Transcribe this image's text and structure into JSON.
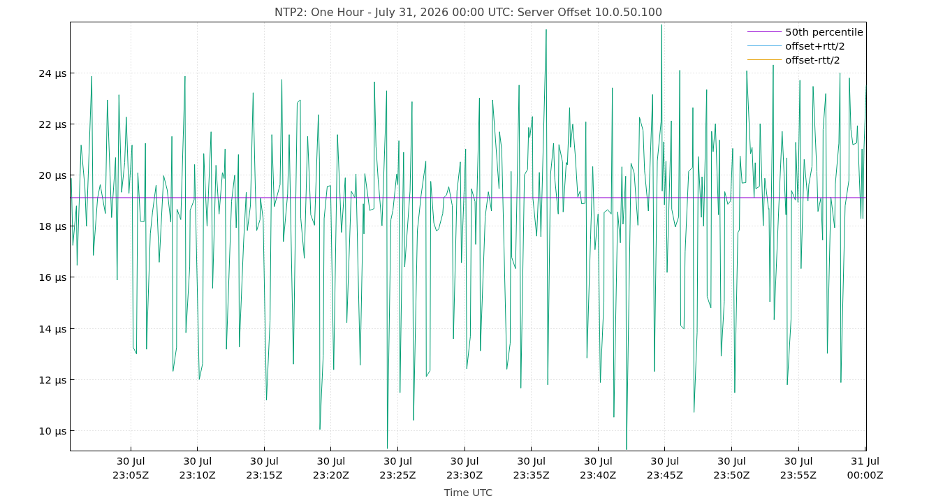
{
  "chart_data": {
    "type": "line",
    "title": "NTP2: One Hour - July 31, 2026 00:00 UTC: Server Offset 10.0.50.100",
    "xlabel": "Time UTC",
    "xlim": [
      "2026-07-30T23:00:28",
      "2026-07-31T00:00:06"
    ],
    "xticks": [
      {
        "value": "2026-07-30T23:05",
        "label": "30 Jul\n23:05Z"
      },
      {
        "value": "2026-07-30T23:10",
        "label": "30 Jul\n23:10Z"
      },
      {
        "value": "2026-07-30T23:15",
        "label": "30 Jul\n23:15Z"
      },
      {
        "value": "2026-07-30T23:20",
        "label": "30 Jul\n23:20Z"
      },
      {
        "value": "2026-07-30T23:25",
        "label": "30 Jul\n23:25Z"
      },
      {
        "value": "2026-07-30T23:30",
        "label": "30 Jul\n23:30Z"
      },
      {
        "value": "2026-07-30T23:35",
        "label": "30 Jul\n23:35Z"
      },
      {
        "value": "2026-07-30T23:40",
        "label": "30 Jul\n23:40Z"
      },
      {
        "value": "2026-07-30T23:45",
        "label": "30 Jul\n23:45Z"
      },
      {
        "value": "2026-07-30T23:50",
        "label": "30 Jul\n23:50Z"
      },
      {
        "value": "2026-07-30T23:55",
        "label": "30 Jul\n23:55Z"
      },
      {
        "value": "2026-07-31T00:00",
        "label": "31 Jul\n00:00Z"
      }
    ],
    "ylim": [
      9.2,
      26
    ],
    "yticks": [
      {
        "value": 10,
        "label": "10 µs"
      },
      {
        "value": 12,
        "label": "12 µs"
      },
      {
        "value": 14,
        "label": "14 µs"
      },
      {
        "value": 16,
        "label": "16 µs"
      },
      {
        "value": 18,
        "label": "18 µs"
      },
      {
        "value": 20,
        "label": "20 µs"
      },
      {
        "value": 22,
        "label": "22 µs"
      },
      {
        "value": 24,
        "label": "24 µs"
      }
    ],
    "grid": true,
    "legend": "top right",
    "line_style": "solid",
    "series": [
      {
        "name": "50th percentile",
        "color": "#9400d3",
        "x": [
          "2026-07-30T23:00:28",
          "2026-07-31T00:00:06"
        ],
        "values": [
          19.12,
          19.12
        ]
      },
      {
        "color": "#009e73",
        "x": [
          "2026-07-30T23:00:33",
          "2026-07-30T23:00:40",
          "2026-07-30T23:00:56",
          "2026-07-30T23:00:59",
          "2026-07-30T23:01:17",
          "2026-07-30T23:01:34",
          "2026-07-30T23:01:41",
          "2026-07-30T23:02:05",
          "2026-07-30T23:02:12",
          "2026-07-30T23:02:31",
          "2026-07-30T23:02:43",
          "2026-07-30T23:03:06",
          "2026-07-30T23:03:15",
          "2026-07-30T23:03:34",
          "2026-07-30T23:03:52",
          "2026-07-30T23:03:59",
          "2026-07-30T23:04:07",
          "2026-07-30T23:04:19",
          "2026-07-30T23:04:33",
          "2026-07-30T23:04:40",
          "2026-07-30T23:04:52",
          "2026-07-30T23:05:06",
          "2026-07-30T23:05:11",
          "2026-07-30T23:05:26",
          "2026-07-30T23:05:32",
          "2026-07-30T23:05:44",
          "2026-07-30T23:06:00",
          "2026-07-30T23:06:06",
          "2026-07-30T23:06:11",
          "2026-07-30T23:06:28",
          "2026-07-30T23:06:38",
          "2026-07-30T23:06:54",
          "2026-07-30T23:07:08",
          "2026-07-30T23:07:28",
          "2026-07-30T23:07:44",
          "2026-07-30T23:08:00",
          "2026-07-30T23:08:05",
          "2026-07-30T23:08:10",
          "2026-07-30T23:08:26",
          "2026-07-30T23:08:28",
          "2026-07-30T23:08:45",
          "2026-07-30T23:09:04",
          "2026-07-30T23:09:08",
          "2026-07-30T23:09:25",
          "2026-07-30T23:09:27",
          "2026-07-30T23:09:45",
          "2026-07-30T23:09:47",
          "2026-07-30T23:10:08",
          "2026-07-30T23:10:23",
          "2026-07-30T23:10:28",
          "2026-07-30T23:10:43",
          "2026-07-30T23:11:01",
          "2026-07-30T23:11:08",
          "2026-07-30T23:11:23",
          "2026-07-30T23:11:37",
          "2026-07-30T23:11:52",
          "2026-07-30T23:12:00",
          "2026-07-30T23:12:04",
          "2026-07-30T23:12:10",
          "2026-07-30T23:12:33",
          "2026-07-30T23:12:47",
          "2026-07-30T23:12:54",
          "2026-07-30T23:13:04",
          "2026-07-30T23:13:08",
          "2026-07-30T23:13:27",
          "2026-07-30T23:13:39",
          "2026-07-30T23:13:44",
          "2026-07-30T23:13:58",
          "2026-07-30T23:14:10",
          "2026-07-30T23:14:20",
          "2026-07-30T23:14:26",
          "2026-07-30T23:14:41",
          "2026-07-30T23:14:43",
          "2026-07-30T23:14:55",
          "2026-07-30T23:15:10",
          "2026-07-30T23:15:26",
          "2026-07-30T23:15:34",
          "2026-07-30T23:15:45",
          "2026-07-30T23:16:11",
          "2026-07-30T23:16:19",
          "2026-07-30T23:16:26",
          "2026-07-30T23:16:45",
          "2026-07-30T23:16:52",
          "2026-07-30T23:17:11",
          "2026-07-30T23:17:28",
          "2026-07-30T23:17:42",
          "2026-07-30T23:17:44",
          "2026-07-30T23:18:00",
          "2026-07-30T23:18:15",
          "2026-07-30T23:18:29",
          "2026-07-30T23:18:46",
          "2026-07-30T23:19:03",
          "2026-07-30T23:19:08",
          "2026-07-30T23:19:10",
          "2026-07-30T23:19:25",
          "2026-07-30T23:19:29",
          "2026-07-30T23:19:43",
          "2026-07-30T23:19:58",
          "2026-07-30T23:20:12",
          "2026-07-30T23:20:29",
          "2026-07-30T23:20:47",
          "2026-07-30T23:21:04",
          "2026-07-30T23:21:11",
          "2026-07-30T23:21:31",
          "2026-07-30T23:21:47",
          "2026-07-30T23:21:52",
          "2026-07-30T23:22:11",
          "2026-07-30T23:22:25",
          "2026-07-30T23:22:28",
          "2026-07-30T23:22:32",
          "2026-07-30T23:22:54",
          "2026-07-30T23:23:13",
          "2026-07-30T23:23:15",
          "2026-07-30T23:23:22",
          "2026-07-30T23:23:32",
          "2026-07-30T23:23:49",
          "2026-07-30T23:24:10",
          "2026-07-30T23:24:13",
          "2026-07-30T23:24:29",
          "2026-07-30T23:24:38",
          "2026-07-30T23:24:55",
          "2026-07-30T23:25:00",
          "2026-07-30T23:25:05",
          "2026-07-30T23:25:10",
          "2026-07-30T23:25:26",
          "2026-07-30T23:25:31",
          "2026-07-30T23:25:55",
          "2026-07-30T23:26:04",
          "2026-07-30T23:26:11",
          "2026-07-30T23:26:28",
          "2026-07-30T23:26:45",
          "2026-07-30T23:27:06",
          "2026-07-30T23:27:08",
          "2026-07-30T23:27:25",
          "2026-07-30T23:27:28",
          "2026-07-30T23:27:42",
          "2026-07-30T23:27:54",
          "2026-07-30T23:28:04",
          "2026-07-30T23:28:22",
          "2026-07-30T23:28:27",
          "2026-07-30T23:28:39",
          "2026-07-30T23:28:49",
          "2026-07-30T23:29:05",
          "2026-07-30T23:29:10",
          "2026-07-30T23:29:26",
          "2026-07-30T23:29:41",
          "2026-07-30T23:29:46",
          "2026-07-30T23:30:05",
          "2026-07-30T23:30:10",
          "2026-07-30T23:30:26",
          "2026-07-30T23:30:31",
          "2026-07-30T23:30:47",
          "2026-07-30T23:30:50",
          "2026-07-30T23:31:07",
          "2026-07-30T23:31:11",
          "2026-07-30T23:31:33",
          "2026-07-30T23:31:47",
          "2026-07-30T23:32:01",
          "2026-07-30T23:32:06",
          "2026-07-30T23:32:35",
          "2026-07-30T23:32:37",
          "2026-07-30T23:32:47",
          "2026-07-30T23:33:10",
          "2026-07-30T23:33:25",
          "2026-07-30T23:33:29",
          "2026-07-30T23:33:32",
          "2026-07-30T23:33:49",
          "2026-07-30T23:34:05",
          "2026-07-30T23:34:13",
          "2026-07-30T23:34:29",
          "2026-07-30T23:34:43",
          "2026-07-30T23:34:48",
          "2026-07-30T23:34:53",
          "2026-07-30T23:35:05",
          "2026-07-30T23:35:07",
          "2026-07-30T23:35:24",
          "2026-07-30T23:35:36",
          "2026-07-30T23:35:43",
          "2026-07-30T23:36:07",
          "2026-07-30T23:36:14",
          "2026-07-30T23:36:26",
          "2026-07-30T23:36:40",
          "2026-07-30T23:36:45",
          "2026-07-30T23:37:01",
          "2026-07-30T23:37:04",
          "2026-07-30T23:37:20",
          "2026-07-30T23:37:23",
          "2026-07-30T23:37:37",
          "2026-07-30T23:37:42",
          "2026-07-30T23:37:52",
          "2026-07-30T23:37:56",
          "2026-07-30T23:38:06",
          "2026-07-30T23:38:17",
          "2026-07-30T23:38:29",
          "2026-07-30T23:38:39",
          "2026-07-30T23:38:46",
          "2026-07-30T23:39:01",
          "2026-07-30T23:39:05",
          "2026-07-30T23:39:10",
          "2026-07-30T23:39:26",
          "2026-07-30T23:39:36",
          "2026-07-30T23:39:46",
          "2026-07-30T23:40:00",
          "2026-07-30T23:40:10",
          "2026-07-30T23:40:26",
          "2026-07-30T23:40:27",
          "2026-07-30T23:40:43",
          "2026-07-30T23:40:59",
          "2026-07-30T23:41:04",
          "2026-07-30T23:41:11",
          "2026-07-30T23:41:28",
          "2026-07-30T23:41:40",
          "2026-07-30T23:41:47",
          "2026-07-30T23:41:52",
          "2026-07-30T23:41:56",
          "2026-07-30T23:42:04",
          "2026-07-30T23:42:08",
          "2026-07-30T23:42:28",
          "2026-07-30T23:42:42",
          "2026-07-30T23:42:59",
          "2026-07-30T23:43:06",
          "2026-07-30T23:43:22",
          "2026-07-30T23:43:29",
          "2026-07-30T23:43:46",
          "2026-07-30T23:44:05",
          "2026-07-30T23:44:13",
          "2026-07-30T23:44:26",
          "2026-07-30T23:44:43",
          "2026-07-30T23:44:46",
          "2026-07-30T23:44:48",
          "2026-07-30T23:44:55",
          "2026-07-30T23:44:58",
          "2026-07-30T23:45:05",
          "2026-07-30T23:45:10",
          "2026-07-30T23:45:29",
          "2026-07-30T23:45:31",
          "2026-07-30T23:45:47",
          "2026-07-30T23:46:02",
          "2026-07-30T23:46:07",
          "2026-07-30T23:46:11",
          "2026-07-30T23:46:26",
          "2026-07-30T23:46:31",
          "2026-07-30T23:46:47",
          "2026-07-30T23:47:04",
          "2026-07-30T23:47:06",
          "2026-07-30T23:47:11",
          "2026-07-30T23:47:25",
          "2026-07-30T23:47:30",
          "2026-07-30T23:47:44",
          "2026-07-30T23:47:47",
          "2026-07-30T23:47:54",
          "2026-07-30T23:48:08",
          "2026-07-30T23:48:10",
          "2026-07-30T23:48:27",
          "2026-07-30T23:48:30",
          "2026-07-30T23:48:37",
          "2026-07-30T23:48:47",
          "2026-07-30T23:49:01",
          "2026-07-30T23:49:05",
          "2026-07-30T23:49:13",
          "2026-07-30T23:49:27",
          "2026-07-30T23:49:29",
          "2026-07-30T23:49:43",
          "2026-07-30T23:49:55",
          "2026-07-30T23:50:05",
          "2026-07-30T23:50:14",
          "2026-07-30T23:50:28",
          "2026-07-30T23:50:35",
          "2026-07-30T23:50:38",
          "2026-07-30T23:50:47",
          "2026-07-30T23:51:04",
          "2026-07-30T23:51:08",
          "2026-07-30T23:51:25",
          "2026-07-30T23:51:32",
          "2026-07-30T23:51:41",
          "2026-07-30T23:51:46",
          "2026-07-30T23:51:49",
          "2026-07-30T23:52:05",
          "2026-07-30T23:52:08",
          "2026-07-30T23:52:22",
          "2026-07-30T23:52:29",
          "2026-07-30T23:52:46",
          "2026-07-30T23:52:48",
          "2026-07-30T23:52:52",
          "2026-07-30T23:53:07",
          "2026-07-30T23:53:11",
          "2026-07-30T23:53:35",
          "2026-07-30T23:53:47",
          "2026-07-30T23:54:04",
          "2026-07-30T23:54:08",
          "2026-07-30T23:54:10",
          "2026-07-30T23:54:27",
          "2026-07-30T23:54:29",
          "2026-07-30T23:54:46",
          "2026-07-30T23:54:48",
          "2026-07-30T23:54:58",
          "2026-07-30T23:55:07",
          "2026-07-30T23:55:12",
          "2026-07-30T23:55:26",
          "2026-07-30T23:55:43",
          "2026-07-30T23:55:47",
          "2026-07-30T23:56:01",
          "2026-07-30T23:56:06",
          "2026-07-30T23:56:23",
          "2026-07-30T23:56:28",
          "2026-07-30T23:56:41",
          "2026-07-30T23:56:49",
          "2026-07-30T23:56:51",
          "2026-07-30T23:57:03",
          "2026-07-30T23:57:10",
          "2026-07-30T23:57:26",
          "2026-07-30T23:57:43",
          "2026-07-30T23:57:46",
          "2026-07-30T23:58:02",
          "2026-07-30T23:58:07",
          "2026-07-30T23:58:11",
          "2026-07-30T23:58:30",
          "2026-07-30T23:58:47",
          "2026-07-30T23:58:49",
          "2026-07-30T23:58:56",
          "2026-07-30T23:59:05",
          "2026-07-30T23:59:22",
          "2026-07-30T23:59:25",
          "2026-07-30T23:59:41",
          "2026-07-30T23:59:46",
          "2026-07-30T23:59:50",
          "2026-07-30T23:59:55",
          "2026-07-31T00:00:05"
        ],
        "values": [
          19.88,
          17.25,
          18.8,
          16.47,
          21.18,
          19.53,
          18.0,
          23.88,
          16.86,
          19.1,
          19.63,
          18.5,
          22.95,
          18.34,
          20.69,
          15.89,
          23.15,
          19.33,
          20.5,
          22.28,
          19.29,
          21.18,
          13.26,
          13.0,
          20.09,
          18.19,
          18.18,
          21.25,
          13.18,
          17.7,
          18.56,
          19.61,
          16.59,
          19.98,
          19.42,
          18.16,
          21.52,
          12.32,
          13.26,
          18.67,
          18.26,
          23.88,
          13.83,
          16.41,
          18.62,
          19.04,
          20.42,
          12.0,
          12.62,
          20.85,
          18.0,
          21.7,
          15.57,
          20.39,
          18.48,
          20.1,
          19.87,
          21.03,
          13.18,
          18.97,
          20.0,
          17.94,
          20.81,
          13.27,
          17.34,
          19.33,
          17.83,
          18.82,
          23.23,
          19.42,
          17.83,
          18.26,
          19.1,
          18.29,
          11.19,
          14.31,
          21.59,
          18.77,
          19.63,
          23.75,
          17.4,
          19.26,
          21.59,
          12.6,
          22.84,
          22.95,
          18.32,
          16.75,
          21.52,
          18.45,
          18.04,
          22.37,
          20.55,
          10.04,
          12.95,
          18.3,
          19.56,
          19.59,
          12.38,
          21.59,
          17.76,
          19.9,
          14.22,
          19.37,
          19.12,
          20.05,
          12.56,
          18.88,
          17.7,
          20.06,
          18.62,
          18.69,
          23.66,
          21.14,
          19.81,
          18.02,
          23.31,
          9.29,
          18.26,
          18.61,
          20.04,
          19.63,
          21.35,
          11.48,
          20.9,
          16.41,
          19.38,
          22.88,
          10.4,
          17.83,
          19.23,
          20.55,
          12.11,
          12.35,
          19.76,
          18.13,
          17.81,
          17.9,
          18.5,
          19.12,
          19.23,
          19.55,
          18.8,
          13.59,
          19.38,
          20.52,
          16.57,
          21.03,
          12.42,
          13.68,
          19.47,
          18.97,
          17.29,
          23.03,
          13.12,
          18.39,
          19.35,
          18.6,
          22.95,
          19.47,
          21.7,
          21.01,
          12.4,
          13.42,
          20.15,
          16.78,
          16.34,
          23.53,
          11.66,
          20.01,
          20.22,
          21.87,
          21.48,
          22.3,
          19.1,
          17.61,
          20.11,
          17.59,
          25.71,
          11.79,
          20.01,
          21.25,
          19.9,
          18.48,
          21.2,
          20.52,
          18.56,
          20.5,
          20.41,
          22.65,
          21.09,
          22.0,
          20.82,
          19.14,
          19.38,
          18.88,
          18.9,
          22.09,
          12.84,
          17.48,
          20.34,
          17.08,
          18.48,
          11.88,
          15.04,
          18.54,
          18.65,
          18.48,
          23.42,
          10.52,
          18.56,
          17.35,
          20.33,
          18.08,
          18.67,
          19.96,
          9.25,
          20.47,
          20.09,
          18.04,
          22.27,
          21.75,
          20.17,
          18.6,
          23.16,
          12.31,
          20.55,
          22.09,
          25.9,
          19.38,
          21.31,
          18.84,
          20.55,
          16.19,
          22.13,
          18.67,
          17.97,
          18.37,
          24.11,
          14.11,
          13.98,
          17.0,
          20.15,
          20.3,
          22.65,
          10.71,
          13.85,
          20.73,
          18.35,
          19.94,
          18.0,
          23.35,
          15.25,
          14.8,
          21.72,
          20.92,
          22.02,
          18.45,
          21.38,
          12.91,
          15.06,
          19.36,
          18.86,
          18.99,
          21.05,
          11.48,
          17.75,
          17.86,
          20.76,
          19.69,
          19.71,
          24.09,
          20.84,
          21.09,
          19.12,
          20.49,
          19.47,
          19.56,
          22.02,
          18.02,
          19.88,
          18.67,
          18.69,
          15.04,
          24.32,
          14.34,
          19.38,
          21.72,
          18.45,
          20.68,
          11.79,
          14.36,
          19.4,
          19.03,
          21.29,
          18.94,
          23.72,
          16.34,
          20.62,
          18.99,
          19.63,
          20.34,
          23.48,
          20.15,
          18.58,
          19.1,
          17.46,
          21.79,
          23.2,
          13.02,
          19.14,
          17.94,
          19.66,
          21.25,
          24.01,
          11.88,
          18.8,
          19.8,
          23.81,
          21.79,
          21.19,
          21.27,
          21.94,
          18.3,
          21.03,
          18.3,
          21.09,
          23.53
        ]
      },
      {
        "name": "offset+rtt/2",
        "color": "#56b4e9"
      },
      {
        "name": "offset-rtt/2",
        "color": "#e69f00"
      }
    ]
  }
}
